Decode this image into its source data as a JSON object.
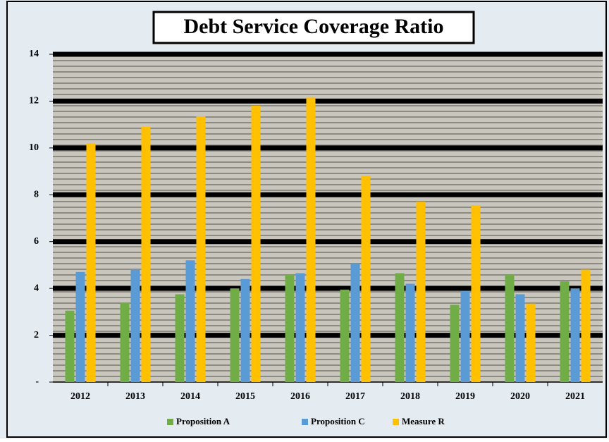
{
  "chart_data": {
    "type": "bar",
    "title": "Debt Service Coverage Ratio",
    "categories": [
      "2012",
      "2013",
      "2014",
      "2015",
      "2016",
      "2017",
      "2018",
      "2019",
      "2020",
      "2021"
    ],
    "series": [
      {
        "name": "Proposition A",
        "color": "#70ad47",
        "values": [
          3.05,
          3.4,
          3.75,
          4.0,
          4.6,
          3.95,
          4.65,
          3.3,
          4.6,
          4.3
        ]
      },
      {
        "name": "Proposition C",
        "color": "#5b9bd5",
        "values": [
          4.7,
          4.8,
          5.2,
          4.4,
          4.65,
          5.05,
          4.2,
          3.9,
          3.75,
          4.0
        ]
      },
      {
        "name": "Measure R",
        "color": "#ffc000",
        "values": [
          10.2,
          10.9,
          11.35,
          11.8,
          12.15,
          8.8,
          7.7,
          7.55,
          3.35,
          4.8
        ]
      }
    ],
    "ylim": [
      0,
      14
    ],
    "yticks": [
      {
        "value": 0,
        "label": "-"
      },
      2,
      4,
      6,
      8,
      10,
      12,
      14
    ],
    "grid": true,
    "legend": "bottom"
  }
}
